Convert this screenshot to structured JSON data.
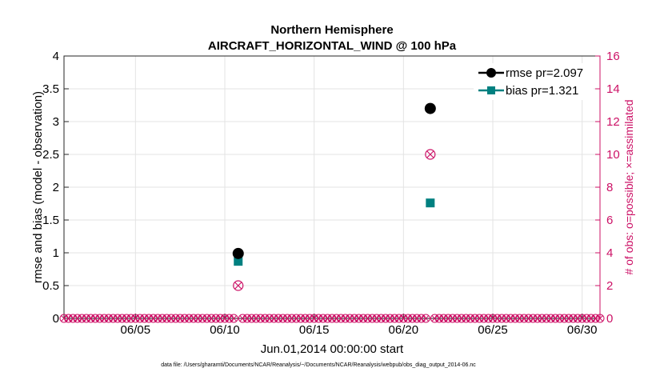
{
  "chart_data": {
    "type": "scatter",
    "title": [
      "Northern Hemisphere",
      "AIRCRAFT_HORIZONTAL_WIND @ 100 hPa"
    ],
    "xlabel": "Jun.01,2014 00:00:00 start",
    "ylabel_left": "rmse and bias (model - observation)",
    "ylabel_right": "# of obs: o=possible; ×=assimilated",
    "x_range_days": [
      1,
      31
    ],
    "x_ticks": [
      {
        "day": 5,
        "label": "06/05"
      },
      {
        "day": 10,
        "label": "06/10"
      },
      {
        "day": 15,
        "label": "06/15"
      },
      {
        "day": 20,
        "label": "06/20"
      },
      {
        "day": 25,
        "label": "06/25"
      },
      {
        "day": 30,
        "label": "06/30"
      }
    ],
    "ylim_left": [
      0,
      4
    ],
    "yticks_left": [
      "0",
      "0.5",
      "1",
      "1.5",
      "2",
      "2.5",
      "3",
      "3.5",
      "4"
    ],
    "ylim_right": [
      0,
      16
    ],
    "yticks_right": [
      "0",
      "2",
      "4",
      "6",
      "8",
      "10",
      "12",
      "14",
      "16"
    ],
    "grid": true,
    "legend_position": "top-right",
    "series": [
      {
        "name": "rmse pr=2.097",
        "color": "#000000",
        "marker": "circle",
        "axis": "left",
        "x": [
          10.75,
          21.5
        ],
        "y": [
          0.99,
          3.2
        ]
      },
      {
        "name": "bias pr=1.321",
        "color": "#008080",
        "marker": "square",
        "axis": "left",
        "x": [
          10.75,
          21.5
        ],
        "y": [
          0.87,
          1.76
        ]
      },
      {
        "name": "possible",
        "color": "#cc1166",
        "marker": "circle-open",
        "axis": "right",
        "x": [
          10.75,
          21.5
        ],
        "y": [
          2,
          10
        ]
      },
      {
        "name": "assimilated",
        "color": "#cc1166",
        "marker": "cross",
        "axis": "right",
        "x": [
          10.75,
          21.5
        ],
        "y": [
          2,
          10
        ]
      }
    ],
    "zero_obs_marks_days": [
      1,
      31,
      0.25
    ],
    "footnote": "data file: /Users/gharamti/Documents/NCAR/Reanalysis/~/Documents/NCAR/Reanalysis/webpub/obs_diag_output_2014-06.nc"
  }
}
